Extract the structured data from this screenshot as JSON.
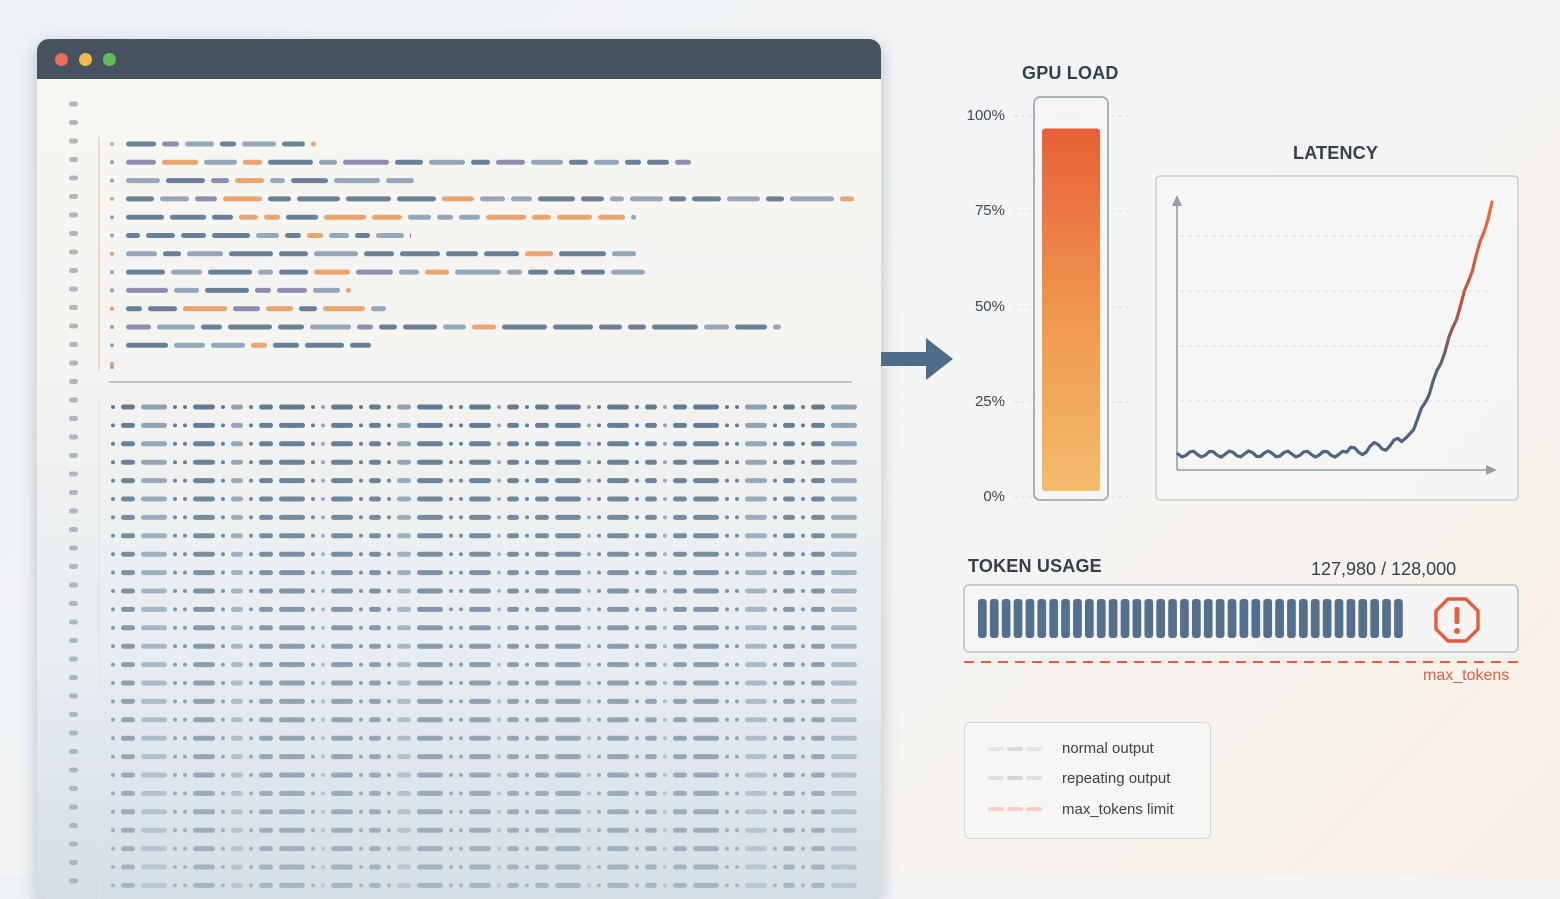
{
  "colors": {
    "slate": "#597189",
    "slate_light": "#8fa4b6",
    "orange": "#e9a066",
    "red": "#e55d3c",
    "titlebar": "#46535f",
    "window_red": "#ee6a5b",
    "window_yellow": "#f2b94b",
    "window_green": "#62bc5c"
  },
  "editor": {
    "window_controls": [
      "close-dot",
      "minimize-dot",
      "zoom-dot"
    ]
  },
  "gpu_load": {
    "title": "GPU LOAD",
    "ticks": [
      "100%",
      "75%",
      "50%",
      "25%",
      "0%"
    ],
    "level": 0.94
  },
  "latency": {
    "title": "LATENCY"
  },
  "token_usage": {
    "title": "TOKEN USAGE",
    "count_text": "127,980 / 128,000",
    "used": 127980,
    "max": 128000,
    "limit_label": "max_tokens",
    "warning_icon": "alert-octagon-icon"
  },
  "legend": {
    "items": [
      {
        "label": "normal output",
        "icon": "dash-gray-icon"
      },
      {
        "label": "repeating output",
        "icon": "dash-slate-icon"
      },
      {
        "label": "max_tokens limit",
        "icon": "dash-red-icon"
      }
    ]
  }
}
